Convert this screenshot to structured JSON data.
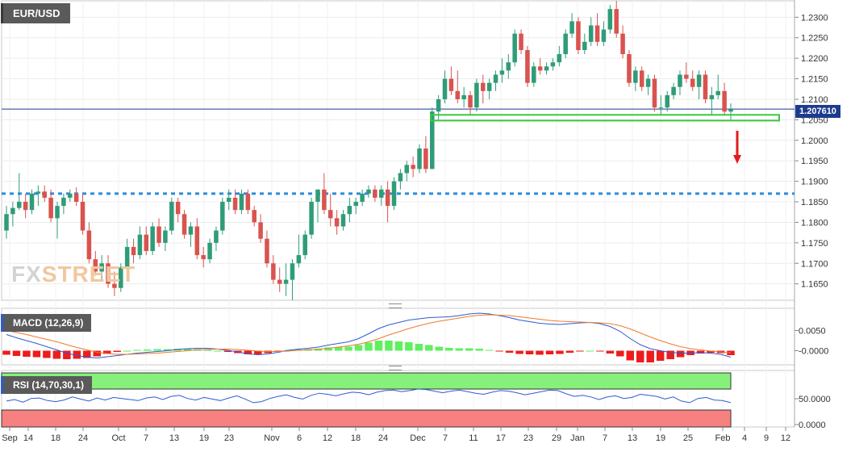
{
  "symbol": "EUR/USD",
  "last_price_label": "1.207610",
  "watermark": {
    "left": "FX",
    "right": "STREET"
  },
  "colors": {
    "bull": "#2f9c78",
    "bear": "#d9534f",
    "macd_line": "#2f5bd3",
    "signal_line": "#f07a2a",
    "hist_positive": "#5ef05e",
    "hist_negative": "#ee1c1c",
    "support_box": "#3cc83c",
    "dotted_level": "#2a8be0",
    "last_price_line": "#1d3b8e",
    "rsi_overbought": "#86f07a",
    "rsi_oversold": "#f78080",
    "arrow": "#e41b1b"
  },
  "macd_label": "MACD (12,26,9)",
  "rsi_label": "RSI (14,70,30,1)",
  "chart_data": [
    {
      "type": "candlestick",
      "title": "EUR/USD",
      "ylim": [
        1.161,
        1.234
      ],
      "y_ticks": [
        "1.2300",
        "1.2250",
        "1.2200",
        "1.2150",
        "1.2100",
        "1.2050",
        "1.2000",
        "1.1950",
        "1.1900",
        "1.1850",
        "1.1800",
        "1.1750",
        "1.1700",
        "1.1650"
      ],
      "x_ticks": [
        "Sep",
        "14",
        "18",
        "24",
        "Oct",
        "7",
        "13",
        "19",
        "23",
        "Nov",
        "6",
        "12",
        "18",
        "24",
        "Dec",
        "7",
        "11",
        "17",
        "23",
        "29",
        "Jan",
        "7",
        "13",
        "19",
        "25",
        "Feb",
        "4",
        "9",
        "12"
      ],
      "last_price": 1.20761,
      "horizontal_level": 1.187,
      "support_zone": [
        1.2048,
        1.2062
      ],
      "annotation": "down arrow below support zone",
      "candles": [
        [
          1.178,
          1.184,
          1.176,
          1.182
        ],
        [
          1.182,
          1.185,
          1.179,
          1.1835
        ],
        [
          1.1835,
          1.192,
          1.183,
          1.185
        ],
        [
          1.185,
          1.187,
          1.181,
          1.183
        ],
        [
          1.183,
          1.188,
          1.182,
          1.187
        ],
        [
          1.187,
          1.189,
          1.184,
          1.1875
        ],
        [
          1.1875,
          1.189,
          1.185,
          1.186
        ],
        [
          1.186,
          1.188,
          1.18,
          1.181
        ],
        [
          1.181,
          1.185,
          1.176,
          1.184
        ],
        [
          1.184,
          1.187,
          1.182,
          1.186
        ],
        [
          1.186,
          1.188,
          1.185,
          1.187
        ],
        [
          1.187,
          1.1885,
          1.184,
          1.185
        ],
        [
          1.185,
          1.187,
          1.177,
          1.178
        ],
        [
          1.178,
          1.18,
          1.17,
          1.171
        ],
        [
          1.171,
          1.173,
          1.167,
          1.168
        ],
        [
          1.168,
          1.172,
          1.166,
          1.17
        ],
        [
          1.17,
          1.172,
          1.164,
          1.165
        ],
        [
          1.165,
          1.168,
          1.162,
          1.164
        ],
        [
          1.164,
          1.17,
          1.163,
          1.169
        ],
        [
          1.169,
          1.176,
          1.168,
          1.174
        ],
        [
          1.174,
          1.176,
          1.17,
          1.172
        ],
        [
          1.172,
          1.179,
          1.171,
          1.177
        ],
        [
          1.177,
          1.179,
          1.172,
          1.173
        ],
        [
          1.173,
          1.18,
          1.172,
          1.179
        ],
        [
          1.179,
          1.181,
          1.174,
          1.175
        ],
        [
          1.175,
          1.179,
          1.173,
          1.178
        ],
        [
          1.178,
          1.186,
          1.177,
          1.185
        ],
        [
          1.185,
          1.186,
          1.18,
          1.182
        ],
        [
          1.182,
          1.183,
          1.176,
          1.177
        ],
        [
          1.177,
          1.18,
          1.174,
          1.179
        ],
        [
          1.179,
          1.181,
          1.171,
          1.172
        ],
        [
          1.172,
          1.174,
          1.169,
          1.171
        ],
        [
          1.171,
          1.176,
          1.17,
          1.175
        ],
        [
          1.175,
          1.179,
          1.173,
          1.178
        ],
        [
          1.178,
          1.186,
          1.177,
          1.185
        ],
        [
          1.185,
          1.188,
          1.183,
          1.186
        ],
        [
          1.186,
          1.188,
          1.182,
          1.183
        ],
        [
          1.183,
          1.188,
          1.182,
          1.187
        ],
        [
          1.187,
          1.188,
          1.182,
          1.183
        ],
        [
          1.183,
          1.184,
          1.179,
          1.18
        ],
        [
          1.18,
          1.182,
          1.175,
          1.176
        ],
        [
          1.176,
          1.178,
          1.169,
          1.17
        ],
        [
          1.17,
          1.172,
          1.165,
          1.166
        ],
        [
          1.166,
          1.169,
          1.163,
          1.165
        ],
        [
          1.165,
          1.17,
          1.162,
          1.166
        ],
        [
          1.166,
          1.171,
          1.161,
          1.17
        ],
        [
          1.17,
          1.177,
          1.169,
          1.172
        ],
        [
          1.172,
          1.178,
          1.171,
          1.177
        ],
        [
          1.177,
          1.186,
          1.176,
          1.185
        ],
        [
          1.185,
          1.188,
          1.18,
          1.188
        ],
        [
          1.188,
          1.192,
          1.182,
          1.183
        ],
        [
          1.183,
          1.187,
          1.179,
          1.181
        ],
        [
          1.181,
          1.183,
          1.177,
          1.179
        ],
        [
          1.179,
          1.183,
          1.178,
          1.182
        ],
        [
          1.182,
          1.186,
          1.18,
          1.184
        ],
        [
          1.184,
          1.186,
          1.182,
          1.185
        ],
        [
          1.185,
          1.188,
          1.184,
          1.187
        ],
        [
          1.187,
          1.189,
          1.186,
          1.188
        ],
        [
          1.188,
          1.189,
          1.185,
          1.186
        ],
        [
          1.186,
          1.189,
          1.184,
          1.188
        ],
        [
          1.188,
          1.19,
          1.18,
          1.184
        ],
        [
          1.184,
          1.191,
          1.183,
          1.19
        ],
        [
          1.19,
          1.193,
          1.188,
          1.192
        ],
        [
          1.192,
          1.195,
          1.19,
          1.194
        ],
        [
          1.194,
          1.196,
          1.191,
          1.193
        ],
        [
          1.193,
          1.199,
          1.192,
          1.198
        ],
        [
          1.198,
          1.201,
          1.192,
          1.193
        ],
        [
          1.193,
          1.208,
          1.193,
          1.207
        ],
        [
          1.207,
          1.211,
          1.205,
          1.21
        ],
        [
          1.21,
          1.217,
          1.209,
          1.215
        ],
        [
          1.215,
          1.218,
          1.211,
          1.212
        ],
        [
          1.212,
          1.217,
          1.209,
          1.21
        ],
        [
          1.21,
          1.213,
          1.208,
          1.211
        ],
        [
          1.211,
          1.212,
          1.206,
          1.208
        ],
        [
          1.208,
          1.215,
          1.207,
          1.214
        ],
        [
          1.214,
          1.216,
          1.209,
          1.212
        ],
        [
          1.212,
          1.215,
          1.21,
          1.214
        ],
        [
          1.214,
          1.217,
          1.212,
          1.216
        ],
        [
          1.216,
          1.22,
          1.214,
          1.217
        ],
        [
          1.217,
          1.221,
          1.215,
          1.219
        ],
        [
          1.219,
          1.227,
          1.218,
          1.226
        ],
        [
          1.226,
          1.227,
          1.221,
          1.222
        ],
        [
          1.222,
          1.223,
          1.213,
          1.214
        ],
        [
          1.214,
          1.219,
          1.213,
          1.218
        ],
        [
          1.218,
          1.22,
          1.216,
          1.217
        ],
        [
          1.217,
          1.219,
          1.216,
          1.218
        ],
        [
          1.218,
          1.22,
          1.217,
          1.219
        ],
        [
          1.219,
          1.223,
          1.218,
          1.221
        ],
        [
          1.221,
          1.227,
          1.22,
          1.226
        ],
        [
          1.226,
          1.231,
          1.225,
          1.229
        ],
        [
          1.229,
          1.23,
          1.221,
          1.222
        ],
        [
          1.222,
          1.226,
          1.221,
          1.224
        ],
        [
          1.224,
          1.23,
          1.223,
          1.228
        ],
        [
          1.228,
          1.231,
          1.223,
          1.224
        ],
        [
          1.224,
          1.229,
          1.223,
          1.227
        ],
        [
          1.227,
          1.233,
          1.226,
          1.232
        ],
        [
          1.232,
          1.234,
          1.225,
          1.226
        ],
        [
          1.226,
          1.228,
          1.22,
          1.221
        ],
        [
          1.221,
          1.222,
          1.213,
          1.214
        ],
        [
          1.214,
          1.218,
          1.212,
          1.217
        ],
        [
          1.217,
          1.218,
          1.212,
          1.213
        ],
        [
          1.213,
          1.216,
          1.211,
          1.215
        ],
        [
          1.215,
          1.216,
          1.207,
          1.208
        ],
        [
          1.208,
          1.211,
          1.206,
          1.208
        ],
        [
          1.208,
          1.212,
          1.207,
          1.211
        ],
        [
          1.211,
          1.214,
          1.21,
          1.213
        ],
        [
          1.213,
          1.217,
          1.211,
          1.216
        ],
        [
          1.216,
          1.219,
          1.214,
          1.215
        ],
        [
          1.215,
          1.217,
          1.212,
          1.213
        ],
        [
          1.213,
          1.217,
          1.21,
          1.216
        ],
        [
          1.216,
          1.217,
          1.209,
          1.21
        ],
        [
          1.21,
          1.213,
          1.206,
          1.211
        ],
        [
          1.211,
          1.216,
          1.21,
          1.212
        ],
        [
          1.212,
          1.214,
          1.206,
          1.207
        ],
        [
          1.207,
          1.209,
          1.205,
          1.2076
        ]
      ]
    },
    {
      "type": "line",
      "title": "MACD (12,26,9)",
      "y_ticks": [
        "0.0050",
        "-0.0000"
      ],
      "ylim": [
        -0.0035,
        0.0105
      ],
      "series": [
        {
          "values": [
            0.004,
            0.0032,
            0.0025,
            0.0018,
            0.001,
            0.0002,
            -0.0006,
            -0.0012,
            -0.0016,
            -0.0018,
            -0.0015,
            -0.0012,
            -0.0009,
            -0.0006,
            -0.0004,
            -0.0002,
            0.0,
            0.0003,
            0.0005,
            0.0006,
            0.0006,
            0.0004,
            0.0001,
            -0.0003,
            -0.0008,
            -0.001,
            -0.0008,
            -0.0004,
            0.0001,
            0.0004,
            0.0006,
            0.0009,
            0.0014,
            0.0018,
            0.0022,
            0.003,
            0.0042,
            0.0055,
            0.0064,
            0.007,
            0.0076,
            0.0079,
            0.0082,
            0.0083,
            0.0084,
            0.0087,
            0.0091,
            0.0093,
            0.0091,
            0.0087,
            0.0082,
            0.0076,
            0.0072,
            0.0068,
            0.0066,
            0.0065,
            0.0067,
            0.0069,
            0.007,
            0.0067,
            0.006,
            0.0048,
            0.003,
            0.0015,
            0.0005,
            0.0,
            -0.0004,
            -0.0006,
            -0.0006,
            -0.0005,
            -0.0006,
            -0.0009,
            -0.0016
          ]
        },
        {
          "values": [
            0.005,
            0.0045,
            0.004,
            0.0034,
            0.0028,
            0.0022,
            0.0015,
            0.0008,
            0.0002,
            -0.0004,
            -0.0007,
            -0.0009,
            -0.0009,
            -0.0008,
            -0.0007,
            -0.0006,
            -0.0004,
            -0.0002,
            0.0,
            0.0002,
            0.0003,
            0.0004,
            0.0004,
            0.0003,
            0.0001,
            -0.0001,
            -0.0002,
            -0.0002,
            -0.0001,
            0.0001,
            0.0002,
            0.0004,
            0.0006,
            0.0009,
            0.0012,
            0.0016,
            0.0022,
            0.003,
            0.0039,
            0.0047,
            0.0055,
            0.0062,
            0.0068,
            0.0073,
            0.0077,
            0.0081,
            0.0085,
            0.0088,
            0.0089,
            0.0088,
            0.0087,
            0.0084,
            0.0081,
            0.0078,
            0.0075,
            0.0073,
            0.0072,
            0.0071,
            0.007,
            0.0069,
            0.0067,
            0.0062,
            0.0054,
            0.0044,
            0.0034,
            0.0025,
            0.0017,
            0.001,
            0.0005,
            0.0002,
            -0.0001,
            -0.0003,
            -0.0005
          ]
        }
      ],
      "histogram": [
        -0.001,
        -0.0013,
        -0.0015,
        -0.0016,
        -0.0018,
        -0.002,
        -0.0021,
        -0.002,
        -0.0018,
        -0.0014,
        -0.0008,
        -0.0003,
        0.0,
        0.0002,
        0.0003,
        0.0004,
        0.0004,
        0.0005,
        0.0005,
        0.0004,
        0.0003,
        0.0,
        -0.0003,
        -0.0006,
        -0.0009,
        -0.0009,
        -0.0006,
        -0.0002,
        0.0002,
        0.0003,
        0.0004,
        0.0005,
        0.0008,
        0.0009,
        0.001,
        0.0014,
        0.002,
        0.0025,
        0.0025,
        0.0023,
        0.0021,
        0.0017,
        0.0014,
        0.001,
        0.0007,
        0.0006,
        0.0006,
        0.0005,
        0.0002,
        -0.0001,
        -0.0005,
        -0.0008,
        -0.0009,
        -0.001,
        -0.0009,
        -0.0008,
        -0.0005,
        -0.0002,
        0.0,
        -0.0002,
        -0.0007,
        -0.0014,
        -0.0024,
        -0.0029,
        -0.0029,
        -0.0025,
        -0.0021,
        -0.0016,
        -0.0011,
        -0.0007,
        -0.0005,
        -0.0006,
        -0.0011
      ]
    },
    {
      "type": "line",
      "title": "RSI (14,70,30,1)",
      "y_ticks": [
        "50.0000",
        "0.0000"
      ],
      "ylim": [
        0,
        100
      ],
      "bands": {
        "overbought": 70,
        "oversold": 30
      },
      "series": [
        {
          "values": [
            47,
            50,
            45,
            52,
            53,
            48,
            46,
            49,
            55,
            51,
            47,
            53,
            49,
            54,
            52,
            50,
            48,
            53,
            55,
            50,
            56,
            58,
            52,
            49,
            54,
            51,
            48,
            53,
            57,
            51,
            44,
            46,
            52,
            56,
            59,
            54,
            51,
            58,
            62,
            60,
            57,
            61,
            64,
            63,
            59,
            64,
            67,
            68,
            65,
            67,
            70,
            69,
            66,
            63,
            66,
            68,
            65,
            62,
            60,
            64,
            67,
            66,
            63,
            59,
            62,
            65,
            68,
            67,
            61,
            56,
            58,
            55,
            50,
            55,
            57,
            52,
            54,
            60,
            58,
            56,
            51,
            55,
            47,
            44,
            52,
            54,
            49,
            48,
            44
          ]
        }
      ]
    }
  ]
}
